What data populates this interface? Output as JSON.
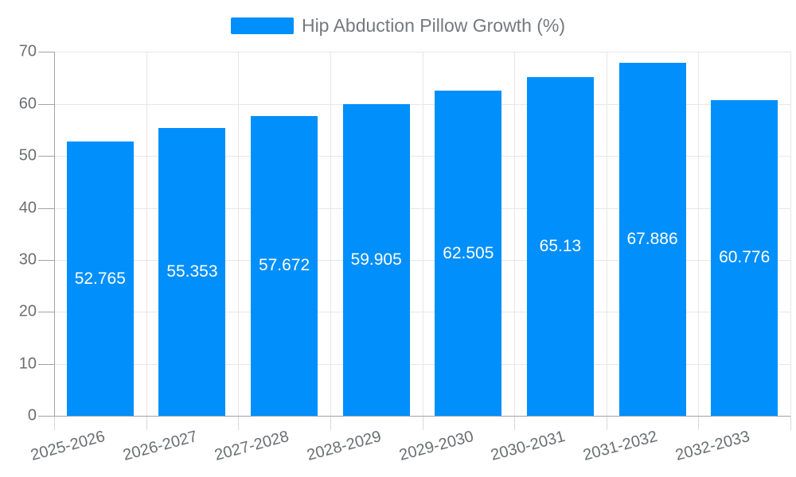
{
  "chart_data": {
    "type": "bar",
    "title": "Hip Abduction Pillow Growth (%)",
    "legend": {
      "position": "top",
      "label": "Hip Abduction Pillow Growth (%)",
      "marker_color": "#008FFB"
    },
    "categories": [
      "2025-2026",
      "2026-2027",
      "2027-2028",
      "2028-2029",
      "2029-2030",
      "2030-2031",
      "2031-2032",
      "2032-2033"
    ],
    "series": [
      {
        "name": "Hip Abduction Pillow Growth (%)",
        "values": [
          52.765,
          55.353,
          57.672,
          59.905,
          62.505,
          65.13,
          67.886,
          60.776
        ],
        "value_labels": [
          "52.765",
          "55.353",
          "57.672",
          "59.905",
          "62.505",
          "65.13",
          "67.886",
          "60.776"
        ]
      }
    ],
    "xlabel": "",
    "ylabel": "",
    "ylim": [
      0,
      70
    ],
    "yticks": [
      0,
      10,
      20,
      30,
      40,
      50,
      60,
      70
    ],
    "ytick_labels": [
      "0",
      "10",
      "20",
      "30",
      "40",
      "50",
      "60",
      "70"
    ],
    "grid": true,
    "data_labels_inside_bars": true,
    "colors": {
      "bar": "#008FFB",
      "grid": "#e7e7e7",
      "axis": "#a3a3a3",
      "axis_tick_x": "#d9d9d9",
      "axis_label": "#6b6e71",
      "legend_label": "#75797d",
      "data_label": "#ffffff",
      "background": "#ffffff"
    }
  }
}
